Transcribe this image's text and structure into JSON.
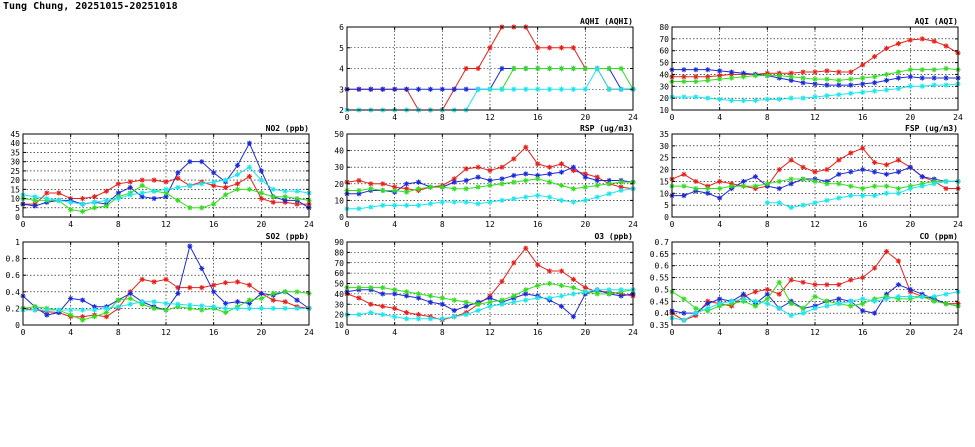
{
  "page_title": "Tung Chung, 20251015-20251018",
  "series_colors": {
    "red": "#e8201c",
    "blue": "#1c2ad8",
    "green": "#33dd1f",
    "cyan": "#1ae6ee"
  },
  "chart_data": [
    {
      "id": "aqhi",
      "type": "line",
      "title": "AQHI (AQHI)",
      "xlim": [
        0,
        24
      ],
      "xticks": [
        0,
        4,
        8,
        12,
        16,
        20,
        24
      ],
      "ylim": [
        2,
        6
      ],
      "yticks": [
        2,
        3,
        4,
        5,
        6
      ],
      "grid": true,
      "series": [
        {
          "color": "red",
          "values": [
            3,
            3,
            3,
            3,
            3,
            3,
            2,
            2,
            2,
            3,
            4,
            4,
            5,
            6,
            6,
            6,
            5,
            5,
            5,
            5,
            4,
            4,
            3,
            3,
            3
          ]
        },
        {
          "color": "blue",
          "values": [
            3,
            3,
            3,
            3,
            3,
            3,
            3,
            3,
            3,
            3,
            3,
            3,
            3,
            4,
            4,
            4,
            4,
            4,
            4,
            4,
            4,
            4,
            4,
            3,
            3
          ]
        },
        {
          "color": "green",
          "values": [
            null,
            null,
            null,
            null,
            null,
            null,
            null,
            null,
            null,
            null,
            null,
            null,
            3,
            3,
            4,
            4,
            4,
            4,
            4,
            4,
            4,
            4,
            4,
            4,
            3
          ]
        },
        {
          "color": "cyan",
          "values": [
            2,
            2,
            2,
            2,
            2,
            2,
            2,
            2,
            2,
            2,
            2,
            3,
            3,
            3,
            3,
            3,
            3,
            3,
            3,
            3,
            3,
            4,
            3,
            3,
            3
          ]
        }
      ]
    },
    {
      "id": "aqi",
      "type": "line",
      "title": "AQI (AQI)",
      "xlim": [
        0,
        24
      ],
      "xticks": [
        0,
        4,
        8,
        12,
        16,
        20,
        24
      ],
      "ylim": [
        10,
        80
      ],
      "yticks": [
        10,
        20,
        30,
        40,
        50,
        60,
        70,
        80
      ],
      "grid": true,
      "series": [
        {
          "color": "red",
          "values": [
            38,
            38,
            38,
            38,
            39,
            40,
            40,
            40,
            41,
            41,
            41,
            42,
            42,
            43,
            42,
            42,
            48,
            55,
            62,
            66,
            69,
            70,
            68,
            64,
            58
          ]
        },
        {
          "color": "blue",
          "values": [
            44,
            44,
            44,
            44,
            43,
            42,
            41,
            40,
            39,
            37,
            35,
            33,
            32,
            31,
            31,
            31,
            32,
            33,
            35,
            37,
            38,
            37,
            37,
            37,
            37
          ]
        },
        {
          "color": "green",
          "values": [
            34,
            34,
            34,
            35,
            36,
            37,
            38,
            39,
            39,
            39,
            38,
            37,
            36,
            36,
            35,
            36,
            37,
            38,
            40,
            42,
            44,
            44,
            44,
            45,
            44
          ]
        },
        {
          "color": "cyan",
          "values": [
            21,
            21,
            21,
            20,
            19,
            18,
            18,
            18,
            19,
            19,
            20,
            20,
            21,
            22,
            23,
            24,
            25,
            26,
            27,
            28,
            30,
            30,
            31,
            31,
            32
          ]
        }
      ]
    },
    {
      "id": "no2",
      "type": "line",
      "title": "NO2 (ppb)",
      "xlim": [
        0,
        24
      ],
      "xticks": [
        0,
        4,
        8,
        12,
        16,
        20,
        24
      ],
      "ylim": [
        0,
        45
      ],
      "yticks": [
        0,
        5,
        10,
        15,
        20,
        25,
        30,
        35,
        40,
        45
      ],
      "grid": true,
      "series": [
        {
          "color": "red",
          "values": [
            7,
            7,
            13,
            13,
            10,
            10,
            11,
            14,
            18,
            19,
            20,
            20,
            19,
            21,
            17,
            19,
            17,
            16,
            18,
            22,
            10,
            8,
            8,
            7,
            7
          ]
        },
        {
          "color": "blue",
          "values": [
            7,
            6,
            8,
            9,
            9,
            7,
            8,
            7,
            13,
            16,
            11,
            10,
            11,
            24,
            30,
            30,
            24,
            19,
            28,
            40,
            25,
            11,
            9,
            9,
            5
          ]
        },
        {
          "color": "green",
          "values": [
            10,
            9,
            9,
            9,
            4,
            3,
            5,
            6,
            11,
            13,
            17,
            14,
            13,
            9,
            5,
            5,
            7,
            12,
            15,
            15,
            13,
            11,
            11,
            10,
            9
          ]
        },
        {
          "color": "cyan",
          "values": [
            12,
            11,
            10,
            9,
            8,
            7,
            8,
            9,
            10,
            12,
            13,
            14,
            15,
            16,
            17,
            18,
            19,
            20,
            23,
            27,
            20,
            15,
            14,
            14,
            13
          ]
        }
      ]
    },
    {
      "id": "rsp",
      "type": "line",
      "title": "RSP (ug/m3)",
      "xlim": [
        0,
        24
      ],
      "xticks": [
        0,
        4,
        8,
        12,
        16,
        20,
        24
      ],
      "ylim": [
        0,
        50
      ],
      "yticks": [
        0,
        10,
        20,
        30,
        40,
        50
      ],
      "grid": true,
      "series": [
        {
          "color": "red",
          "values": [
            21,
            22,
            20,
            20,
            18,
            17,
            16,
            18,
            19,
            23,
            29,
            30,
            28,
            30,
            35,
            42,
            32,
            30,
            32,
            28,
            26,
            24,
            20,
            18,
            17
          ]
        },
        {
          "color": "blue",
          "values": [
            14,
            14,
            16,
            16,
            15,
            20,
            21,
            18,
            18,
            21,
            22,
            24,
            22,
            23,
            25,
            26,
            25,
            26,
            27,
            30,
            24,
            22,
            22,
            22,
            21
          ]
        },
        {
          "color": "green",
          "values": [
            16,
            16,
            17,
            16,
            16,
            15,
            17,
            18,
            18,
            17,
            17,
            18,
            19,
            20,
            21,
            22,
            23,
            21,
            19,
            17,
            18,
            19,
            20,
            21,
            21
          ]
        },
        {
          "color": "cyan",
          "values": [
            5,
            5,
            6,
            7,
            7,
            7,
            7,
            8,
            9,
            9,
            9,
            8,
            9,
            10,
            11,
            12,
            13,
            12,
            10,
            9,
            10,
            12,
            14,
            16,
            17
          ]
        }
      ]
    },
    {
      "id": "fsp",
      "type": "line",
      "title": "FSP (ug/m3)",
      "xlim": [
        0,
        24
      ],
      "xticks": [
        0,
        4,
        8,
        12,
        16,
        20,
        24
      ],
      "ylim": [
        0,
        35
      ],
      "yticks": [
        0,
        5,
        10,
        15,
        20,
        25,
        30,
        35
      ],
      "grid": true,
      "series": [
        {
          "color": "red",
          "values": [
            16,
            18,
            15,
            13,
            15,
            14,
            13,
            12,
            13,
            20,
            24,
            21,
            19,
            20,
            24,
            27,
            29,
            23,
            22,
            24,
            21,
            17,
            15,
            12,
            12
          ]
        },
        {
          "color": "blue",
          "values": [
            9,
            9,
            11,
            10,
            8,
            12,
            15,
            17,
            13,
            12,
            14,
            16,
            16,
            15,
            18,
            19,
            20,
            19,
            18,
            19,
            21,
            17,
            16,
            15,
            15
          ]
        },
        {
          "color": "green",
          "values": [
            13,
            13,
            12,
            12,
            12,
            13,
            13,
            13,
            14,
            15,
            16,
            16,
            15,
            14,
            14,
            13,
            12,
            13,
            13,
            12,
            13,
            14,
            15,
            15,
            15
          ]
        },
        {
          "color": "cyan",
          "values": [
            null,
            null,
            null,
            null,
            null,
            null,
            null,
            null,
            6,
            6,
            4,
            5,
            6,
            7,
            8,
            9,
            9,
            9,
            10,
            10,
            12,
            13,
            14,
            15,
            15
          ]
        }
      ]
    },
    {
      "id": "so2",
      "type": "line",
      "title": "SO2 (ppb)",
      "xlim": [
        0,
        24
      ],
      "xticks": [
        0,
        4,
        8,
        12,
        16,
        20,
        24
      ],
      "ylim": [
        0,
        1.0
      ],
      "yticks": [
        0,
        0.2,
        0.4,
        0.6,
        0.8,
        1.0
      ],
      "grid": true,
      "series": [
        {
          "color": "red",
          "values": [
            0.2,
            0.18,
            0.16,
            0.15,
            0.1,
            0.1,
            0.12,
            0.1,
            0.2,
            0.4,
            0.55,
            0.52,
            0.55,
            0.45,
            0.45,
            0.45,
            0.48,
            0.51,
            0.52,
            0.48,
            0.38,
            0.3,
            0.28,
            0.22,
            0.2
          ]
        },
        {
          "color": "blue",
          "values": [
            0.35,
            0.22,
            0.12,
            0.15,
            0.32,
            0.3,
            0.22,
            0.22,
            0.3,
            0.38,
            0.28,
            0.22,
            0.18,
            0.38,
            0.95,
            0.68,
            0.4,
            0.26,
            0.28,
            0.26,
            0.38,
            0.36,
            0.4,
            0.3,
            0.2
          ]
        },
        {
          "color": "green",
          "values": [
            0.2,
            0.22,
            0.2,
            0.18,
            0.12,
            0.06,
            0.1,
            0.15,
            0.3,
            0.32,
            0.25,
            0.2,
            0.18,
            0.22,
            0.2,
            0.18,
            0.2,
            0.15,
            0.22,
            0.3,
            0.32,
            0.38,
            0.4,
            0.4,
            0.38
          ]
        },
        {
          "color": "cyan",
          "values": [
            0.18,
            0.18,
            0.18,
            0.18,
            0.18,
            0.18,
            0.18,
            0.2,
            0.22,
            0.25,
            0.28,
            0.28,
            0.26,
            0.25,
            0.24,
            0.23,
            0.22,
            0.2,
            0.2,
            0.2,
            0.2,
            0.2,
            0.2,
            0.2,
            0.2
          ]
        }
      ]
    },
    {
      "id": "o3",
      "type": "line",
      "title": "O3 (ppb)",
      "xlim": [
        0,
        24
      ],
      "xticks": [
        0,
        4,
        8,
        12,
        16,
        20,
        24
      ],
      "ylim": [
        10,
        90
      ],
      "yticks": [
        10,
        20,
        30,
        40,
        50,
        60,
        70,
        80,
        90
      ],
      "grid": true,
      "series": [
        {
          "color": "red",
          "values": [
            40,
            36,
            30,
            28,
            26,
            22,
            20,
            18,
            15,
            18,
            22,
            30,
            38,
            52,
            70,
            84,
            68,
            62,
            62,
            54,
            46,
            42,
            42,
            40,
            38
          ]
        },
        {
          "color": "blue",
          "values": [
            42,
            44,
            44,
            40,
            40,
            38,
            36,
            32,
            30,
            24,
            28,
            32,
            36,
            32,
            36,
            40,
            38,
            34,
            28,
            18,
            40,
            44,
            40,
            38,
            40
          ]
        },
        {
          "color": "green",
          "values": [
            46,
            46,
            46,
            46,
            44,
            42,
            40,
            38,
            36,
            34,
            32,
            30,
            32,
            34,
            38,
            44,
            48,
            50,
            48,
            46,
            42,
            40,
            40,
            42,
            44
          ]
        },
        {
          "color": "cyan",
          "values": [
            20,
            20,
            22,
            20,
            18,
            16,
            16,
            16,
            16,
            18,
            20,
            24,
            28,
            30,
            32,
            34,
            36,
            36,
            38,
            40,
            42,
            44,
            44,
            44,
            44
          ]
        }
      ]
    },
    {
      "id": "co",
      "type": "line",
      "title": "CO (ppm)",
      "xlim": [
        0,
        24
      ],
      "xticks": [
        0,
        4,
        8,
        12,
        16,
        20,
        24
      ],
      "ylim": [
        0.35,
        0.7
      ],
      "yticks": [
        0.35,
        0.4,
        0.45,
        0.5,
        0.55,
        0.6,
        0.65,
        0.7
      ],
      "grid": true,
      "series": [
        {
          "color": "red",
          "values": [
            0.4,
            0.37,
            0.39,
            0.45,
            0.44,
            0.43,
            0.47,
            0.49,
            0.5,
            0.48,
            0.54,
            0.53,
            0.52,
            0.52,
            0.52,
            0.54,
            0.55,
            0.59,
            0.66,
            0.62,
            0.49,
            0.47,
            0.46,
            0.44,
            0.44
          ]
        },
        {
          "color": "blue",
          "values": [
            0.41,
            0.4,
            0.4,
            0.44,
            0.46,
            0.45,
            0.48,
            0.44,
            0.48,
            0.42,
            0.45,
            0.42,
            0.43,
            0.45,
            0.46,
            0.45,
            0.41,
            0.4,
            0.48,
            0.52,
            0.5,
            0.48,
            0.46,
            0.44,
            0.43
          ]
        },
        {
          "color": "green",
          "values": [
            0.49,
            0.46,
            0.42,
            0.41,
            0.43,
            0.44,
            0.45,
            0.43,
            0.46,
            0.53,
            0.44,
            0.42,
            0.47,
            0.45,
            0.44,
            0.43,
            0.44,
            0.46,
            0.47,
            0.46,
            0.46,
            0.47,
            0.45,
            0.44,
            0.43
          ]
        },
        {
          "color": "cyan",
          "values": [
            0.38,
            0.37,
            0.4,
            0.42,
            0.44,
            0.45,
            0.46,
            0.45,
            0.44,
            0.42,
            0.39,
            0.4,
            0.42,
            0.43,
            0.44,
            0.45,
            0.46,
            0.45,
            0.46,
            0.47,
            0.47,
            0.47,
            0.47,
            0.48,
            0.49
          ]
        }
      ]
    }
  ]
}
